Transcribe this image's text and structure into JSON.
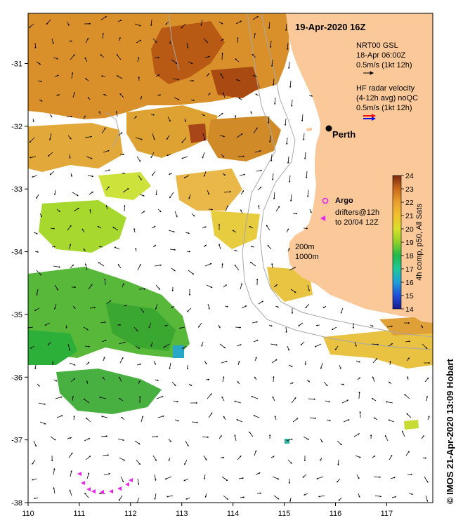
{
  "title": "19-Apr-2020 16Z",
  "city": {
    "name": "Perth",
    "lon": 115.86,
    "lat": -31.95
  },
  "axes": {
    "lon_range": [
      110,
      117.9
    ],
    "lat_range": [
      -38,
      -30.2
    ],
    "lon_ticks": [
      "110",
      "111",
      "112",
      "113",
      "114",
      "115",
      "116",
      "117"
    ],
    "lat_ticks": [
      "-31",
      "-32",
      "-33",
      "-34",
      "-35",
      "-36",
      "-37",
      "-38"
    ]
  },
  "legend": {
    "model": {
      "line1": "NRT00 GSL",
      "line2": "18-Apr 06:00Z",
      "line3": "0.5m/s (1kt 12h)"
    },
    "radar": {
      "line1": "HF radar velocity",
      "line2": "(4-12h avg) noQC",
      "line3": "0.5m/s (1kt 12h)"
    },
    "argo": {
      "label": "Argo"
    },
    "drifters": {
      "line1": "drifters@12h",
      "line2": "to 20/04 12Z"
    },
    "depth": {
      "line1": "200m",
      "line2": "1000m"
    }
  },
  "colorbar": {
    "label": "4h comp, p50, All Sats",
    "min": 14,
    "max": 24,
    "ticks": [
      "14",
      "15",
      "16",
      "17",
      "18",
      "19",
      "20",
      "21",
      "22",
      "23",
      "24"
    ]
  },
  "credit": "© IMOS 21-Apr-2020 13:09 Hobart",
  "colors": {
    "land": "#fbc999",
    "argo": "#ee22ee",
    "drifter": "#ee22ee",
    "radar_red": "#ee1111",
    "radar_blue": "#1111dd",
    "isobath": "#a8a8a8"
  }
}
